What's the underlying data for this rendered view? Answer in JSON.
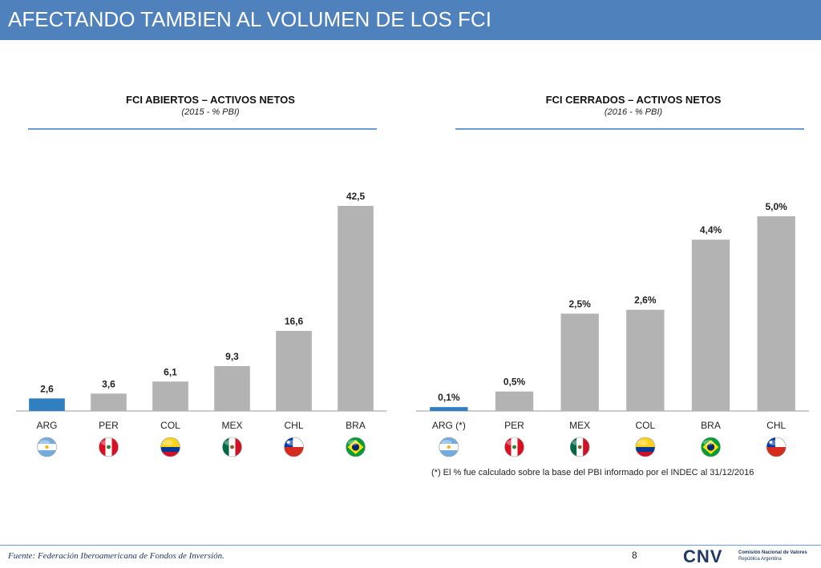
{
  "header": {
    "title": "AFECTANDO TAMBIEN AL VOLUMEN DE LOS FCI"
  },
  "charts": [
    {
      "title": "FCI ABIERTOS – ACTIVOS NETOS",
      "subtitle": "(2015 - % PBI)"
    },
    {
      "title": "FCI CERRADOS – ACTIVOS NETOS",
      "subtitle": "(2016 - % PBI)"
    }
  ],
  "chart_data": [
    {
      "type": "bar",
      "title": "FCI ABIERTOS – ACTIVOS NETOS",
      "subtitle": "(2015 - % PBI)",
      "categories": [
        "ARG",
        "PER",
        "COL",
        "MEX",
        "CHL",
        "BRA"
      ],
      "flags": [
        "flag-argentina",
        "flag-peru",
        "flag-colombia",
        "flag-mexico",
        "flag-chile",
        "flag-brazil"
      ],
      "values": [
        2.6,
        3.6,
        6.1,
        9.3,
        16.6,
        42.5
      ],
      "labels": [
        "2,6",
        "3,6",
        "6,1",
        "9,3",
        "16,6",
        "42,5"
      ],
      "highlight_index": 0,
      "colors": {
        "bar": "#b3b3b3",
        "highlight": "#2f7fc1",
        "axis": "#9a9a9a"
      },
      "grid": false,
      "legend": "none"
    },
    {
      "type": "bar",
      "title": "FCI CERRADOS – ACTIVOS NETOS",
      "subtitle": "(2016 - % PBI)",
      "categories": [
        "ARG (*)",
        "PER",
        "MEX",
        "COL",
        "BRA",
        "CHL"
      ],
      "flags": [
        "flag-argentina",
        "flag-peru",
        "flag-mexico",
        "flag-colombia",
        "flag-brazil",
        "flag-chile"
      ],
      "values": [
        0.1,
        0.5,
        2.5,
        2.6,
        4.4,
        5.0
      ],
      "labels": [
        "0,1%",
        "0,5%",
        "2,5%",
        "2,6%",
        "4,4%",
        "5,0%"
      ],
      "highlight_index": 0,
      "colors": {
        "bar": "#b3b3b3",
        "highlight": "#2f7fc1",
        "axis": "#9a9a9a"
      },
      "grid": false,
      "legend": "none"
    }
  ],
  "footnote": "(*) El % fue calculado sobre la base del PBI informado por el INDEC al 31/12/2016",
  "footer": {
    "source": "Fuente: Federación Iberoamericana de Fondos de Inversión.",
    "page_number": "8",
    "logo_mark": "CNV",
    "logo_line1": "Comisión Nacional de Valores",
    "logo_line2": "República Argentina"
  },
  "theme": {
    "header_bg": "#4f81bd",
    "rule": "#6a9bd1",
    "logo": "#1f3864"
  }
}
